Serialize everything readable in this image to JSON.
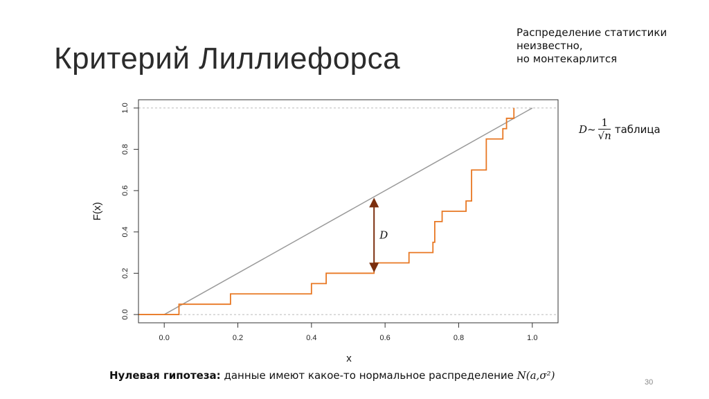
{
  "slide": {
    "title": "Критерий Лиллиефорса",
    "note_lines": [
      "Распределение статистики",
      "неизвестно,",
      "но монтекарлится"
    ],
    "formula": {
      "lhs": "D~",
      "numerator": "1",
      "denominator": "√n",
      "word": "таблица"
    },
    "hypothesis": {
      "bold": "Нулевая гипотеза:",
      "text": " данные имеют какое-то нормальное распределение ",
      "math": "N(a,σ²)"
    },
    "page_number": "30"
  },
  "chart_data": {
    "type": "line",
    "xlabel": "x",
    "ylabel": "F(x)",
    "xlim": [
      -0.07,
      1.07
    ],
    "ylim": [
      -0.04,
      1.04
    ],
    "x_ticks": [
      "0.0",
      "0.2",
      "0.4",
      "0.6",
      "0.8",
      "1.0"
    ],
    "y_ticks": [
      "0.0",
      "0.2",
      "0.4",
      "0.6",
      "0.8",
      "1.0"
    ],
    "reference_lines": [
      0,
      1
    ],
    "series": [
      {
        "kind": "theoretical_cdf",
        "color": "#999999",
        "points": [
          [
            0.0,
            0.0
          ],
          [
            1.0,
            1.0
          ]
        ]
      },
      {
        "kind": "empirical_cdf",
        "color": "#e87722",
        "steps": [
          [
            0.04,
            0.05
          ],
          [
            0.18,
            0.1
          ],
          [
            0.4,
            0.15
          ],
          [
            0.44,
            0.2
          ],
          [
            0.57,
            0.25
          ],
          [
            0.665,
            0.3
          ],
          [
            0.73,
            0.35
          ],
          [
            0.735,
            0.45
          ],
          [
            0.755,
            0.5
          ],
          [
            0.82,
            0.55
          ],
          [
            0.835,
            0.7
          ],
          [
            0.875,
            0.85
          ],
          [
            0.92,
            0.9
          ],
          [
            0.93,
            0.95
          ],
          [
            0.95,
            1.0
          ]
        ]
      }
    ],
    "annotation": {
      "label": "D",
      "x": 0.57,
      "y_from": 0.2,
      "y_to": 0.57,
      "color": "#7a2e0e"
    }
  }
}
